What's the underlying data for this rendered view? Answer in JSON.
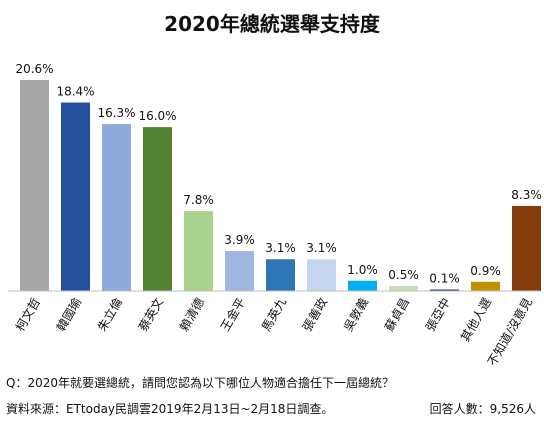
{
  "chart_data": {
    "type": "bar",
    "title": "2020年總統選舉支持度",
    "categories": [
      "柯文哲",
      "韓國瑜",
      "朱立倫",
      "蔡英文",
      "賴清德",
      "王金平",
      "馬英九",
      "張善政",
      "吳敦義",
      "蘇貞昌",
      "張亞中",
      "其他人選",
      "不知道/沒意見"
    ],
    "values": [
      20.6,
      18.4,
      16.3,
      16.0,
      7.8,
      3.9,
      3.1,
      3.1,
      1.0,
      0.5,
      0.1,
      0.9,
      8.3
    ],
    "value_labels": [
      "20.6%",
      "18.4%",
      "16.3%",
      "16.0%",
      "7.8%",
      "3.9%",
      "3.1%",
      "3.1%",
      "1.0%",
      "0.5%",
      "0.1%",
      "0.9%",
      "8.3%"
    ],
    "colors": [
      "#a6a6a6",
      "#24509e",
      "#8faadc",
      "#548235",
      "#a9d18e",
      "#9fb7e0",
      "#2e75b6",
      "#c5d6f0",
      "#00b0f0",
      "#c5e0b4",
      "#203864",
      "#bf9000",
      "#843c0c"
    ],
    "xlabel": "",
    "ylabel": "",
    "ylim": [
      0,
      22
    ],
    "grid": false,
    "legend": "none"
  },
  "footer": {
    "question": "Q：2020年就要選總統，請問您認為以下哪位人物適合擔任下一屆總統？",
    "source": "資料來源：ETtoday民調雲2019年2月13日~2月18日調查。",
    "respondents": "回答人數：9,526人"
  }
}
